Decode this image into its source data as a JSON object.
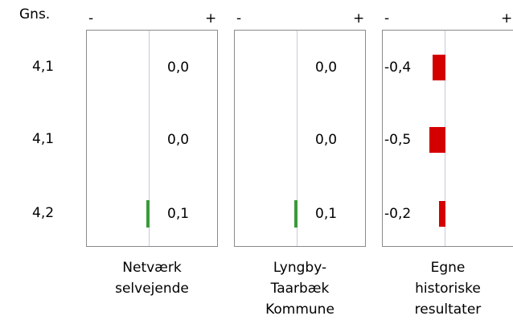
{
  "chart_data": {
    "type": "bar",
    "orientation": "horizontal",
    "header": "Gns.",
    "sign_negative": "-",
    "sign_positive": "+",
    "averages": [
      "4,1",
      "4,1",
      "4,2"
    ],
    "panels": [
      {
        "label": "Netværk\nselvejende",
        "values": [
          0.0,
          0.0,
          0.1
        ],
        "value_labels": [
          "0,0",
          "0,0",
          "0,1"
        ]
      },
      {
        "label": "Lyngby-\nTaarbæk\nKommune",
        "values": [
          0.0,
          0.0,
          0.1
        ],
        "value_labels": [
          "0,0",
          "0,0",
          "0,1"
        ]
      },
      {
        "label": "Egne\nhistoriske\nresultater",
        "values": [
          -0.4,
          -0.5,
          -0.2
        ],
        "value_labels": [
          "-0,4",
          "-0,5",
          "-0,2"
        ]
      }
    ],
    "colors": {
      "positive": "#3a9a3a",
      "negative": "#d40000",
      "center_line": "#c8c8e0",
      "frame": "#8a8a8a"
    }
  }
}
